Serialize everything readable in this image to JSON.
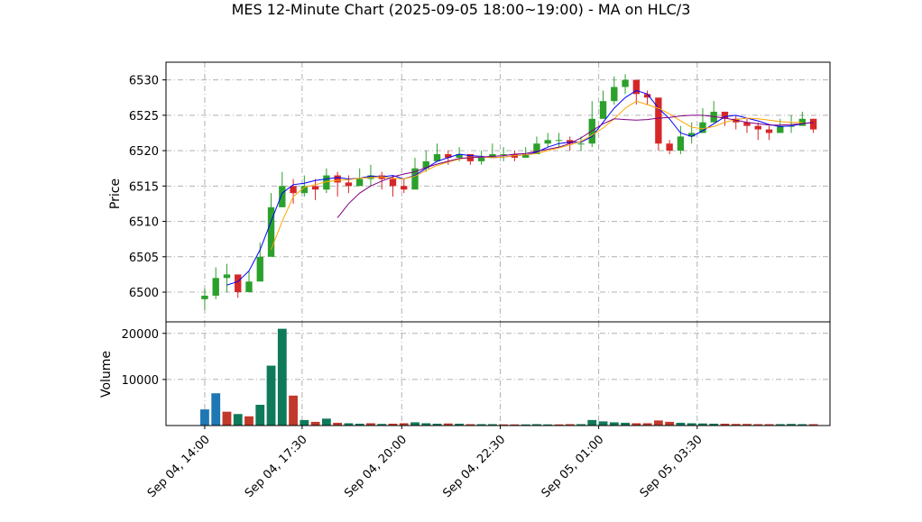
{
  "chart_data": {
    "type": "candlestick",
    "title": "MES 12-Minute Chart (2025-09-05 18:00~19:00) - MA on HLC/3",
    "price_panel": {
      "ylabel": "Price",
      "ylim": [
        6495.8,
        6532.5
      ],
      "yticks": [
        6500,
        6505,
        6510,
        6515,
        6520,
        6525,
        6530
      ],
      "grid": true
    },
    "volume_panel": {
      "ylabel": "Volume",
      "ylim": [
        0,
        22500
      ],
      "yticks": [
        10000,
        20000
      ],
      "grid": true
    },
    "x_axis": {
      "xlim_bar_index": [
        -3.5,
        56.5
      ],
      "tick_labels": [
        "Sep 04, 14:00",
        "Sep 04, 17:30",
        "Sep 04, 20:00",
        "Sep 04, 22:30",
        "Sep 05, 01:00",
        "Sep 05, 03:30"
      ],
      "tick_bar_index": [
        0,
        8.8,
        17.8,
        26.7,
        35.6,
        44.5
      ]
    },
    "colors": {
      "up": "#2ca02c",
      "down": "#d62728",
      "ma_short": "#0000ff",
      "ma_mid": "#ffa500",
      "ma_long": "#800080",
      "volume_up": "#0f7a5a",
      "volume_down": "#c0392b",
      "volume_other": "#1f77b4",
      "grid": "#b0b0b0"
    },
    "candles": {
      "close": [
        6499.5,
        6502,
        6502.5,
        6500,
        6501.5,
        6505,
        6512,
        6515,
        6514,
        6515,
        6514.5,
        6516.5,
        6515.5,
        6515,
        6516,
        6516.5,
        6516,
        6515,
        6514.5,
        6517.5,
        6518.5,
        6519.5,
        6519,
        6519.5,
        6518.5,
        6519,
        6519.5,
        6519.5,
        6519,
        6519.5,
        6521,
        6521.5,
        6521.5,
        6521,
        6521,
        6524.5,
        6527,
        6529,
        6530,
        6528,
        6527.5,
        6521,
        6520,
        6522,
        6522.5,
        6524,
        6525.5,
        6524.5,
        6524,
        6523.5,
        6523,
        6522.5,
        6523.5,
        6523.5,
        6524.5,
        6523
      ],
      "high": [
        6500.5,
        6503.5,
        6504,
        6502,
        6503,
        6507,
        6514,
        6517,
        6516,
        6516.5,
        6516,
        6517.5,
        6517,
        6516.5,
        6517.5,
        6518,
        6517,
        6516.5,
        6516,
        6519,
        6520,
        6521,
        6520,
        6520.5,
        6519.5,
        6520,
        6521,
        6520.5,
        6520,
        6520.5,
        6522,
        6522.5,
        6522.5,
        6522,
        6522,
        6527,
        6528.5,
        6530.5,
        6530.8,
        6529,
        6528.5,
        6524,
        6521.5,
        6523.5,
        6524,
        6526,
        6527,
        6525.5,
        6525,
        6524.5,
        6524,
        6523.5,
        6524.5,
        6525,
        6525.5,
        6524.5
      ],
      "low": [
        6497.5,
        6499,
        6500,
        6499.2,
        6500,
        6503,
        6507,
        6512,
        6512.5,
        6513.5,
        6513,
        6514,
        6513.5,
        6514,
        6515,
        6515,
        6514.5,
        6513.5,
        6514,
        6516,
        6517,
        6518.5,
        6518,
        6518.5,
        6518,
        6518,
        6519,
        6518.5,
        6518.5,
        6519,
        6519.5,
        6520.5,
        6520.5,
        6520,
        6520,
        6520.5,
        6524.5,
        6526.5,
        6528,
        6526.5,
        6526.5,
        6520,
        6519.5,
        6519.5,
        6521,
        6522.5,
        6524,
        6523.5,
        6523,
        6522.5,
        6521.5,
        6521.5,
        6522.5,
        6522.5,
        6523.5,
        6522.5
      ]
    },
    "volume": [
      3500,
      7000,
      3000,
      2500,
      2000,
      4500,
      13000,
      21000,
      6500,
      1200,
      800,
      1500,
      600,
      500,
      400,
      500,
      350,
      400,
      500,
      700,
      500,
      400,
      450,
      400,
      300,
      300,
      300,
      250,
      250,
      250,
      300,
      250,
      250,
      300,
      300,
      1200,
      900,
      700,
      600,
      500,
      500,
      1100,
      800,
      600,
      500,
      450,
      400,
      400,
      350,
      350,
      300,
      300,
      300,
      350,
      300,
      300
    ],
    "volume_color_class": [
      "other",
      "other",
      "down",
      "up",
      "down",
      "up",
      "up",
      "up",
      "down",
      "up",
      "down",
      "up",
      "down",
      "up",
      "up",
      "down",
      "up",
      "down",
      "down",
      "up",
      "up",
      "up",
      "down",
      "up",
      "down",
      "up",
      "up",
      "down",
      "down",
      "up",
      "up",
      "up",
      "down",
      "down",
      "up",
      "up",
      "up",
      "up",
      "up",
      "down",
      "down",
      "down",
      "down",
      "up",
      "up",
      "up",
      "up",
      "down",
      "down",
      "down",
      "down",
      "down",
      "up",
      "up",
      "up",
      "down"
    ],
    "moving_averages": [
      {
        "color_key": "ma_short",
        "start_index": 2,
        "values": [
          6501,
          6501.5,
          6503,
          6506,
          6510,
          6514,
          6515.2,
          6515.4,
          6515.8,
          6516,
          6516.2,
          6516,
          6516.1,
          6516.4,
          6516.3,
          6516.5,
          6516,
          6516.5,
          6517.5,
          6518.5,
          6519,
          6519.5,
          6519.3,
          6519.2,
          6519,
          6519.1,
          6519.3,
          6519.4,
          6519.8,
          6520.5,
          6521,
          6521.2,
          6521.2,
          6522,
          6524,
          6526,
          6527.5,
          6528.5,
          6528,
          6526,
          6524.5,
          6522.5,
          6522,
          6522.8,
          6523.8,
          6524.8,
          6525,
          6524.6,
          6524.2,
          6523.7,
          6523.4,
          6523.5,
          6523.8,
          6524
        ]
      },
      {
        "color_key": "ma_mid",
        "start_index": 6,
        "values": [
          6506,
          6510,
          6513.5,
          6514.8,
          6515.2,
          6515.6,
          6515.8,
          6515.9,
          6516.1,
          6516.2,
          6516.3,
          6516.1,
          6516,
          6516.4,
          6517.2,
          6517.9,
          6518.4,
          6518.8,
          6519.1,
          6519.1,
          6519,
          6519.1,
          6519.3,
          6519.4,
          6519.6,
          6520,
          6520.4,
          6520.8,
          6521.3,
          6522.2,
          6523.2,
          6524.5,
          6526,
          6527,
          6526.5,
          6526,
          6525.2,
          6524.2,
          6523.3,
          6523.1,
          6523.4,
          6524,
          6524.4,
          6524.6,
          6524.5,
          6524.3,
          6524.1,
          6524,
          6524
        ]
      },
      {
        "color_key": "ma_long",
        "start_index": 12,
        "values": [
          6510.5,
          6512.5,
          6514,
          6515,
          6515.7,
          6516.3,
          6516.7,
          6517,
          6517.6,
          6518.1,
          6518.5,
          6518.9,
          6519,
          6519.1,
          6519.2,
          6519.3,
          6519.5,
          6519.6,
          6519.9,
          6520.2,
          6520.5,
          6521,
          6521.8,
          6522.8,
          6523.8,
          6524.5,
          6524.4,
          6524.3,
          6524.4,
          6524.6,
          6524.7,
          6524.9,
          6525,
          6525,
          6524.8,
          6524.6,
          6524.3,
          6524,
          6523.8,
          6523.6,
          6523.6,
          6523.7,
          6523.8,
          6524
        ]
      }
    ]
  }
}
